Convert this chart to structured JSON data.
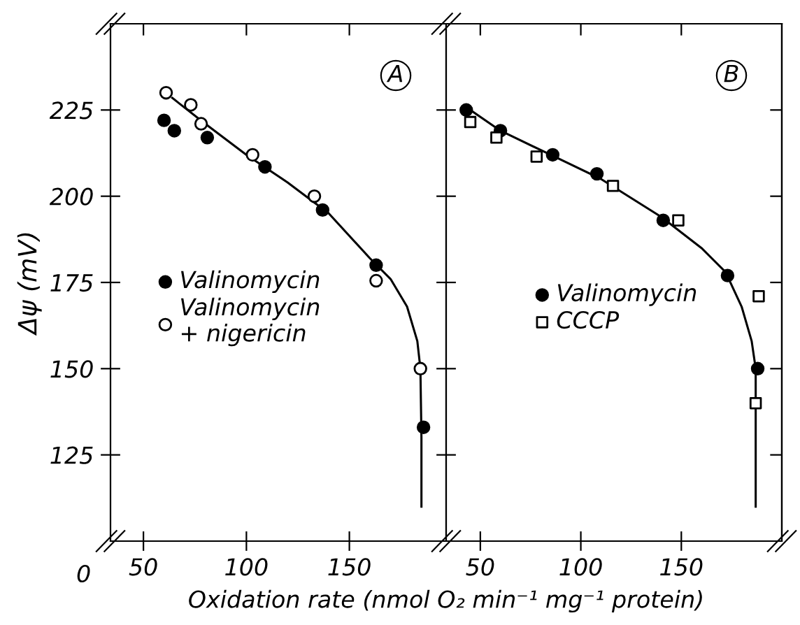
{
  "chart_data": [
    {
      "type": "scatter",
      "ylabel": "Δψ (mV)",
      "xlabel": "Oxidation rate (nmol O₂ min⁻¹ mg⁻¹ protein)",
      "annotations": [
        "A",
        "0"
      ],
      "xlim": [
        34,
        197
      ],
      "xticks": [
        50,
        100,
        150
      ],
      "ylim": [
        100,
        250
      ],
      "yticks": [
        125,
        150,
        175,
        200,
        225
      ],
      "legend": "left",
      "grid": false,
      "tick_labels": true,
      "series": [
        {
          "name": "Valinomycin",
          "color": "#000000",
          "marker": "circle",
          "x": [
            60,
            65,
            81,
            109,
            137,
            163,
            186
          ],
          "values": [
            222,
            219,
            217,
            208.5,
            196,
            180,
            133
          ]
        },
        {
          "name": "Valinomycin\n+ nigericin",
          "color": "#ffffff",
          "marker": "circle",
          "x": [
            61,
            73,
            78,
            103,
            133,
            163,
            184.5
          ],
          "values": [
            230,
            226.5,
            221,
            212,
            200,
            175.5,
            150
          ]
        },
        {
          "type": "line",
          "color": "#000000",
          "x": [
            64,
            80,
            100,
            120,
            140,
            160,
            170,
            178,
            183,
            184.5,
            185,
            185
          ],
          "values": [
            228.5,
            221,
            212,
            204,
            195,
            182,
            176,
            168,
            158,
            150,
            130,
            110
          ]
        }
      ]
    },
    {
      "type": "scatter",
      "annotations": [
        "B"
      ],
      "xlim": [
        33,
        200
      ],
      "xticks": [
        50,
        100,
        150
      ],
      "ylim": [
        100,
        250
      ],
      "yticks": [
        125,
        150,
        175,
        200,
        225
      ],
      "legend": "center",
      "grid": false,
      "tick_labels": "x",
      "series": [
        {
          "name": "Valinomycin",
          "color": "#000000",
          "marker": "circle",
          "x": [
            43,
            60,
            86,
            108,
            141,
            173,
            188
          ],
          "values": [
            225,
            219,
            212,
            206.5,
            193,
            177,
            150
          ]
        },
        {
          "name": "CCCP",
          "color": "#ffffff",
          "marker": "square",
          "x": [
            45,
            58,
            78,
            116,
            148.5,
            188.5,
            187
          ],
          "values": [
            221.5,
            217,
            211.5,
            203,
            193,
            171,
            140
          ]
        },
        {
          "type": "line",
          "color": "#000000",
          "x": [
            45,
            60,
            85,
            110,
            140,
            160,
            172,
            180,
            185,
            187,
            187
          ],
          "values": [
            225,
            219,
            212,
            205,
            194,
            185,
            178,
            168,
            158,
            150,
            110
          ]
        }
      ]
    }
  ]
}
